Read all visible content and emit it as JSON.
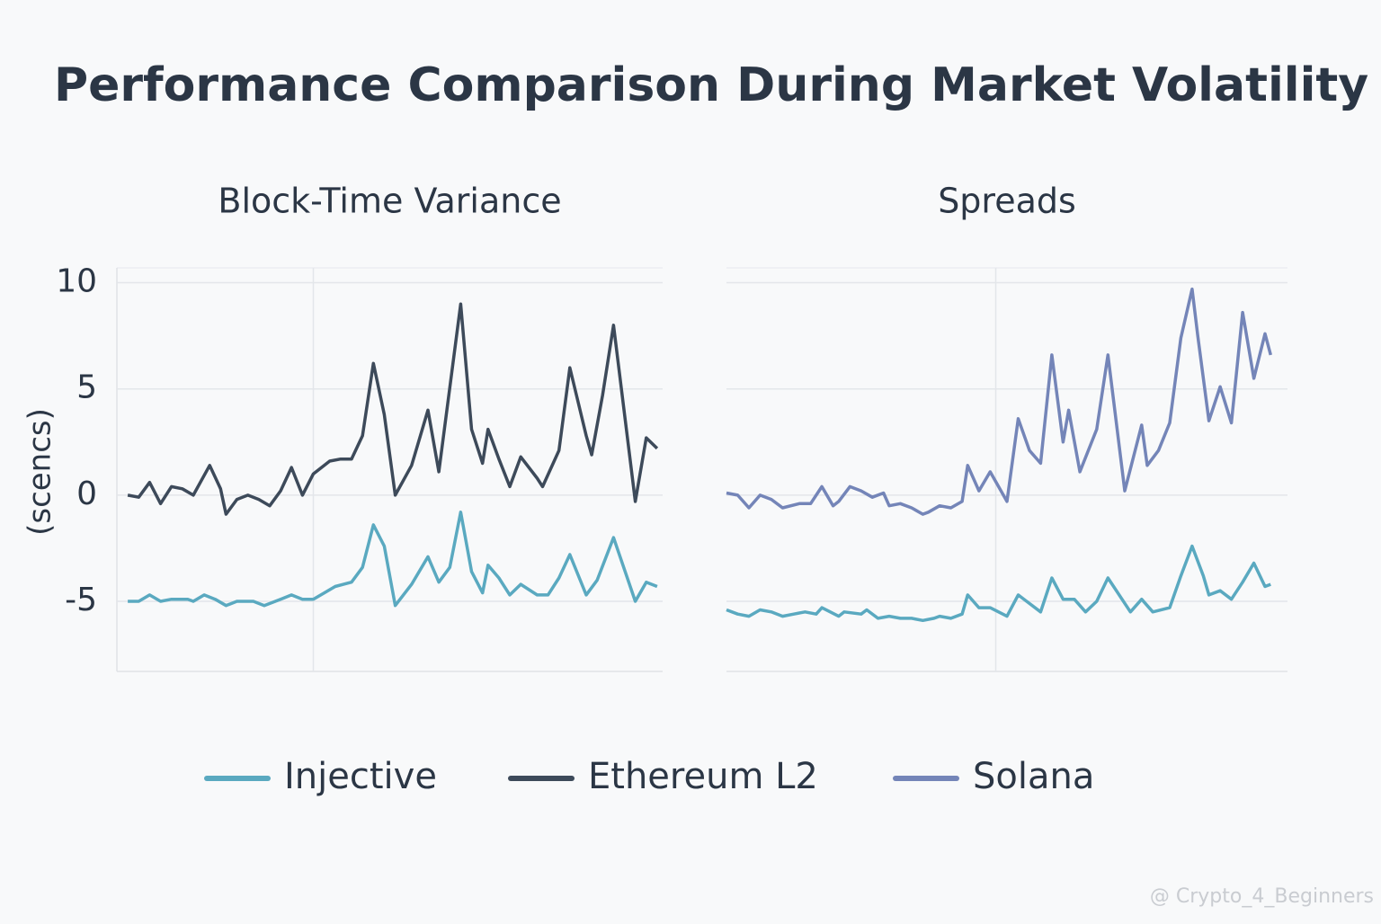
{
  "title": "Performance Comparison During Market Volatility",
  "watermark": "@ Crypto_4_Beginners",
  "chart_data": [
    {
      "type": "line",
      "title": "Block-Time Variance",
      "ylabel": "(scencs)",
      "xlim": [
        0,
        100
      ],
      "xticks": [
        36
      ],
      "ylim": [
        -8.3,
        10.7
      ],
      "yticks": [
        10,
        5,
        0,
        -5
      ],
      "grid": true,
      "series": [
        {
          "name": "Injective",
          "color": "#5aa9c0",
          "x": [
            2,
            4,
            6,
            8,
            10,
            13,
            14,
            16,
            18,
            20,
            22,
            25,
            27,
            30,
            32,
            34,
            36,
            38,
            40,
            43,
            45,
            47,
            49,
            51,
            54,
            57,
            59,
            61,
            63,
            65,
            67,
            68,
            70,
            72,
            74,
            77,
            79,
            81,
            83,
            86,
            88,
            91,
            95,
            97,
            99
          ],
          "values": [
            -5.0,
            -5.0,
            -4.7,
            -5.0,
            -4.9,
            -4.9,
            -5.0,
            -4.7,
            -4.9,
            -5.2,
            -5.0,
            -5.0,
            -5.2,
            -4.9,
            -4.7,
            -4.9,
            -4.9,
            -4.6,
            -4.3,
            -4.1,
            -3.4,
            -1.4,
            -2.4,
            -5.2,
            -4.2,
            -2.9,
            -4.1,
            -3.4,
            -0.8,
            -3.6,
            -4.6,
            -3.3,
            -3.9,
            -4.7,
            -4.2,
            -4.7,
            -4.7,
            -3.9,
            -2.8,
            -4.7,
            -4.0,
            -2.0,
            -5.0,
            -4.1,
            -4.3
          ]
        },
        {
          "name": "Ethereum L2",
          "color": "#3d4a5a",
          "x": [
            2,
            4,
            6,
            8,
            10,
            12,
            14,
            17,
            19,
            20,
            22,
            24,
            26,
            28,
            30,
            32,
            34,
            36,
            39,
            41,
            43,
            45,
            47,
            49,
            51,
            54,
            57,
            59,
            63,
            65,
            67,
            68,
            70,
            72,
            74,
            77,
            78,
            81,
            83,
            86,
            87,
            89,
            91,
            95,
            97,
            99
          ],
          "values": [
            0,
            -0.1,
            0.6,
            -0.4,
            0.4,
            0.3,
            0,
            1.4,
            0.3,
            -0.9,
            -0.2,
            0,
            -0.2,
            -0.5,
            0.2,
            1.3,
            0,
            1.0,
            1.6,
            1.7,
            1.7,
            2.8,
            6.2,
            3.8,
            0,
            1.4,
            4.0,
            1.1,
            9.0,
            3.1,
            1.5,
            3.1,
            1.7,
            0.4,
            1.8,
            0.8,
            0.4,
            2.1,
            6.0,
            2.8,
            1.9,
            4.7,
            8.0,
            -0.3,
            2.7,
            2.2
          ]
        }
      ]
    },
    {
      "type": "line",
      "title": "Spreads",
      "xlim": [
        0,
        100
      ],
      "xticks": [
        48
      ],
      "ylim": [
        -8.3,
        10.7
      ],
      "yticks": [
        10,
        5,
        0,
        -5
      ],
      "grid": true,
      "series": [
        {
          "name": "Injective",
          "color": "#5aa9c0",
          "x": [
            0,
            2,
            4,
            6,
            8,
            10,
            12,
            14,
            16,
            17,
            20,
            21,
            24,
            25,
            27,
            29,
            31,
            33,
            35,
            37,
            38,
            40,
            42,
            43,
            45,
            47,
            50,
            52,
            54,
            56,
            58,
            60,
            62,
            64,
            66,
            68,
            72,
            74,
            76,
            79,
            81,
            83,
            85,
            86,
            88,
            90,
            92,
            94,
            96,
            97
          ],
          "values": [
            -5.4,
            -5.6,
            -5.7,
            -5.4,
            -5.5,
            -5.7,
            -5.6,
            -5.5,
            -5.6,
            -5.3,
            -5.7,
            -5.5,
            -5.6,
            -5.4,
            -5.8,
            -5.7,
            -5.8,
            -5.8,
            -5.9,
            -5.8,
            -5.7,
            -5.8,
            -5.6,
            -4.7,
            -5.3,
            -5.3,
            -5.7,
            -4.7,
            -5.1,
            -5.5,
            -3.9,
            -4.9,
            -4.9,
            -5.5,
            -5.0,
            -3.9,
            -5.5,
            -4.9,
            -5.5,
            -5.3,
            -3.8,
            -2.4,
            -3.8,
            -4.7,
            -4.5,
            -4.9,
            -4.1,
            -3.2,
            -4.3,
            -4.2
          ]
        },
        {
          "name": "Solana",
          "color": "#7485b8",
          "x": [
            0,
            2,
            4,
            6,
            8,
            10,
            13,
            15,
            17,
            19,
            20,
            22,
            24,
            26,
            28,
            29,
            31,
            33,
            35,
            36,
            38,
            40,
            42,
            43,
            45,
            47,
            50,
            52,
            54,
            56,
            58,
            60,
            61,
            63,
            66,
            68,
            71,
            74,
            75,
            77,
            79,
            81,
            83,
            84,
            86,
            88,
            90,
            92,
            94,
            96,
            97
          ],
          "values": [
            0.1,
            0,
            -0.6,
            0,
            -0.2,
            -0.6,
            -0.4,
            -0.4,
            0.4,
            -0.5,
            -0.3,
            0.4,
            0.2,
            -0.1,
            0.1,
            -0.5,
            -0.4,
            -0.6,
            -0.9,
            -0.8,
            -0.5,
            -0.6,
            -0.3,
            1.4,
            0.2,
            1.1,
            -0.3,
            3.6,
            2.1,
            1.5,
            6.6,
            2.5,
            4.0,
            1.1,
            3.1,
            6.6,
            0.2,
            3.3,
            1.4,
            2.1,
            3.4,
            7.4,
            9.7,
            7.5,
            3.5,
            5.1,
            3.4,
            8.6,
            5.5,
            7.6,
            6.6
          ]
        }
      ]
    }
  ]
}
